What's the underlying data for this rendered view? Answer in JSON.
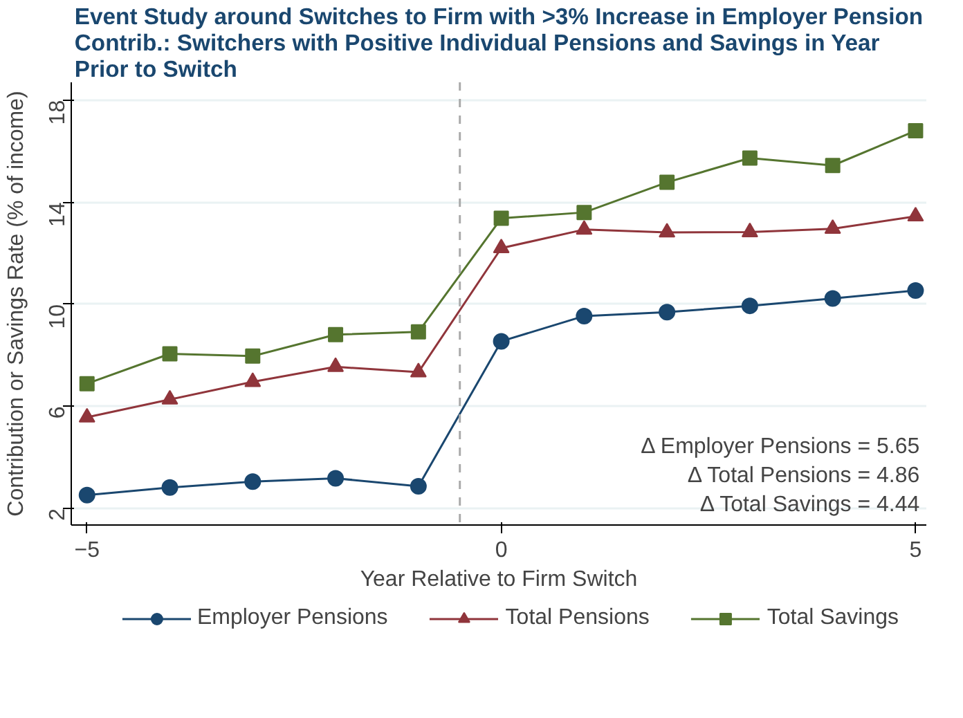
{
  "chart_data": {
    "type": "line",
    "title": "Event Study around Switches to Firm with >3% Increase in Employer Pension Contrib.: Switchers with Positive Individual Pensions and Savings in Year Prior to Switch",
    "xlabel": "Year Relative to Firm Switch",
    "ylabel": "Contribution or Savings Rate (% of income)",
    "x": [
      -5,
      -4,
      -3,
      -2,
      -1,
      0,
      1,
      2,
      3,
      4,
      5
    ],
    "series": [
      {
        "name": "Employer Pensions",
        "color": "#1a476f",
        "marker": "circle",
        "values": [
          2.52,
          2.82,
          3.05,
          3.18,
          2.87,
          8.55,
          9.54,
          9.69,
          9.94,
          10.23,
          10.54
        ]
      },
      {
        "name": "Total Pensions",
        "color": "#90353b",
        "marker": "triangle",
        "values": [
          5.57,
          6.27,
          6.96,
          7.55,
          7.34,
          12.2,
          12.93,
          12.82,
          12.83,
          12.96,
          13.45
        ]
      },
      {
        "name": "Total Savings",
        "color": "#55752f",
        "marker": "square",
        "values": [
          6.89,
          8.06,
          7.97,
          8.81,
          8.92,
          13.37,
          13.6,
          14.78,
          15.73,
          15.44,
          16.8
        ]
      }
    ],
    "xlim": [
      -5.19,
      5.13
    ],
    "ylim": [
      1.35,
      18.7
    ],
    "xticks": [
      -5,
      0,
      5
    ],
    "yticks": [
      2,
      6,
      10,
      14,
      18
    ],
    "ref_lines": [
      {
        "axis": "x",
        "value": -0.5,
        "color": "#aaaaaa",
        "line_style": "dashed"
      }
    ],
    "annotations": [
      "Δ Employer Pensions = 5.65",
      "Δ Total Pensions = 4.86",
      "Δ Total Savings = 4.44"
    ],
    "grid": "y",
    "legend": "bottom",
    "line_style": "solid"
  }
}
